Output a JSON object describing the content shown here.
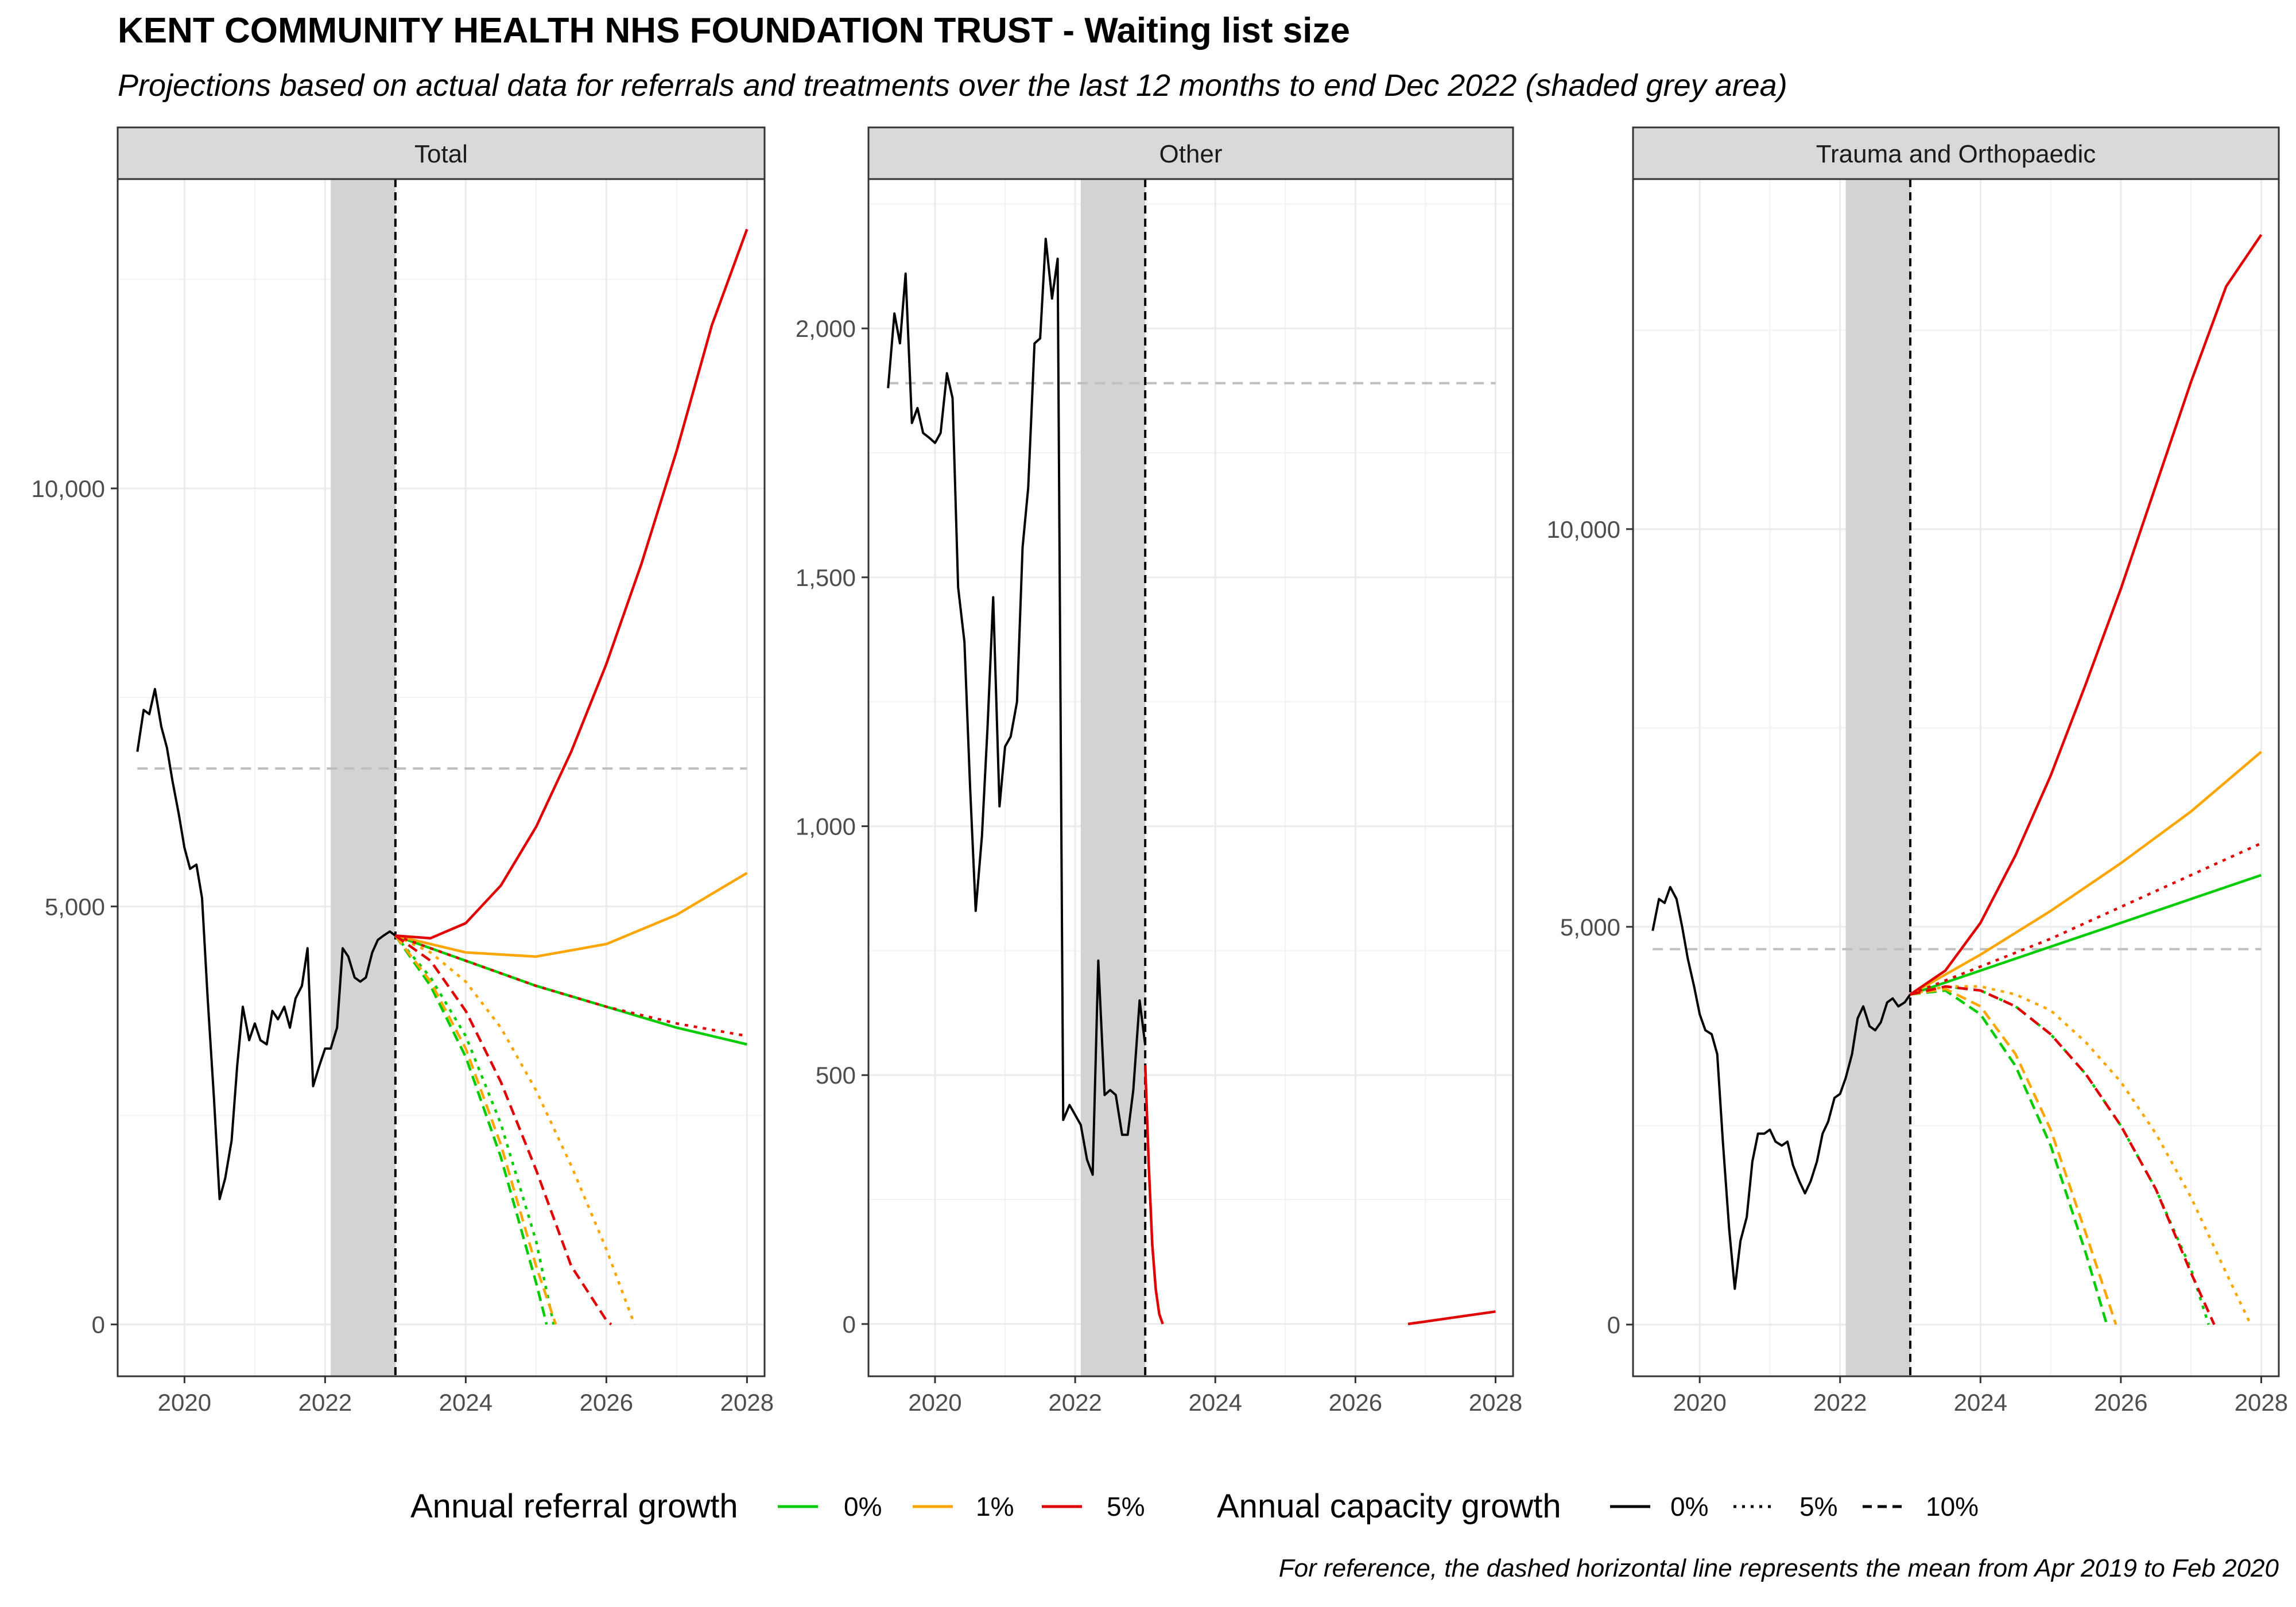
{
  "title": "KENT COMMUNITY HEALTH NHS FOUNDATION TRUST - Waiting list size",
  "subtitle": "Projections based on actual data for referrals and treatments over the last 12 months to end Dec 2022 (shaded grey area)",
  "caption": "For reference, the dashed horizontal line represents the mean from Apr 2019 to Feb 2020",
  "legend": {
    "referral_title": "Annual referral growth",
    "referral_items": [
      {
        "label": "0%",
        "color": "#00CC00"
      },
      {
        "label": "1%",
        "color": "#FFA500"
      },
      {
        "label": "5%",
        "color": "#E00000"
      }
    ],
    "capacity_title": "Annual capacity growth",
    "capacity_items": [
      {
        "label": "0%",
        "dash": "solid"
      },
      {
        "label": "5%",
        "dash": "dotted"
      },
      {
        "label": "10%",
        "dash": "dashed"
      }
    ]
  },
  "colors": {
    "r0": "#00CC00",
    "r1": "#FFA500",
    "r5": "#E00000",
    "actual": "#000000",
    "reference": "#bfbfbf",
    "shade": "#d3d3d3",
    "strip": "#d9d9d9"
  },
  "chart_data": [
    {
      "type": "line",
      "facet": "Total",
      "xlim": [
        2019.05,
        2028.25
      ],
      "ylim": [
        -620,
        13700
      ],
      "xticks": [
        2020,
        2022,
        2024,
        2026,
        2028
      ],
      "yticks": [
        0,
        5000,
        10000
      ],
      "ytick_labels": [
        "0",
        "5,000",
        "10,000"
      ],
      "shaded_period": [
        2022.08,
        2023.0
      ],
      "projection_start": 2023.0,
      "reference_mean": 6650,
      "actual": {
        "x": [
          2019.33,
          2019.42,
          2019.5,
          2019.58,
          2019.67,
          2019.75,
          2019.83,
          2019.92,
          2020.0,
          2020.08,
          2020.17,
          2020.25,
          2020.33,
          2020.42,
          2020.5,
          2020.58,
          2020.67,
          2020.75,
          2020.83,
          2020.92,
          2021.0,
          2021.08,
          2021.17,
          2021.25,
          2021.33,
          2021.42,
          2021.5,
          2021.58,
          2021.67,
          2021.75,
          2021.83,
          2021.92,
          2022.0,
          2022.08,
          2022.17,
          2022.25,
          2022.33,
          2022.42,
          2022.5,
          2022.58,
          2022.67,
          2022.75,
          2022.83,
          2022.92,
          2023.0
        ],
        "y": [
          6850,
          7350,
          7300,
          7600,
          7150,
          6900,
          6500,
          6100,
          5700,
          5450,
          5500,
          5100,
          3900,
          2700,
          1500,
          1750,
          2200,
          3100,
          3800,
          3400,
          3600,
          3400,
          3350,
          3750,
          3650,
          3800,
          3550,
          3900,
          4050,
          4500,
          2850,
          3100,
          3300,
          3300,
          3550,
          4500,
          4400,
          4150,
          4100,
          4150,
          4450,
          4600,
          4650,
          4700,
          4650
        ]
      },
      "projections": [
        {
          "referral": "0%",
          "capacity": "0%",
          "x": [
            2023.0,
            2024.0,
            2025.0,
            2026.0,
            2027.0,
            2028.0
          ],
          "y": [
            4650,
            4350,
            4050,
            3800,
            3550,
            3350
          ]
        },
        {
          "referral": "0%",
          "capacity": "5%",
          "x": [
            2023.0,
            2023.5,
            2024.0,
            2024.5,
            2025.0,
            2025.25
          ],
          "y": [
            4650,
            4150,
            3450,
            2400,
            1000,
            0
          ]
        },
        {
          "referral": "0%",
          "capacity": "10%",
          "x": [
            2023.0,
            2023.5,
            2024.0,
            2024.5,
            2025.0,
            2025.15
          ],
          "y": [
            4650,
            4050,
            3200,
            2000,
            500,
            0
          ]
        },
        {
          "referral": "1%",
          "capacity": "0%",
          "x": [
            2023.0,
            2024.0,
            2025.0,
            2026.0,
            2027.0,
            2028.0
          ],
          "y": [
            4650,
            4450,
            4400,
            4550,
            4900,
            5400
          ]
        },
        {
          "referral": "1%",
          "capacity": "5%",
          "x": [
            2023.0,
            2023.5,
            2024.0,
            2024.5,
            2025.0,
            2025.5,
            2026.0,
            2026.4
          ],
          "y": [
            4650,
            4450,
            4100,
            3550,
            2800,
            1900,
            900,
            0
          ]
        },
        {
          "referral": "1%",
          "capacity": "10%",
          "x": [
            2023.0,
            2023.5,
            2024.0,
            2024.5,
            2025.0,
            2025.28
          ],
          "y": [
            4650,
            4100,
            3300,
            2150,
            700,
            0
          ]
        },
        {
          "referral": "5%",
          "capacity": "0%",
          "x": [
            2023.0,
            2023.5,
            2024.0,
            2024.5,
            2025.0,
            2025.5,
            2026.0,
            2026.5,
            2027.0,
            2027.5,
            2028.0
          ],
          "y": [
            4650,
            4620,
            4800,
            5250,
            5950,
            6850,
            7900,
            9100,
            10450,
            11950,
            13100
          ]
        },
        {
          "referral": "5%",
          "capacity": "5%",
          "x": [
            2023.0,
            2024.0,
            2025.0,
            2026.0,
            2027.0,
            2028.0
          ],
          "y": [
            4650,
            4350,
            4050,
            3800,
            3600,
            3450
          ]
        },
        {
          "referral": "5%",
          "capacity": "10%",
          "x": [
            2023.0,
            2023.5,
            2024.0,
            2024.5,
            2025.0,
            2025.5,
            2026.0,
            2026.07
          ],
          "y": [
            4650,
            4350,
            3750,
            2900,
            1850,
            700,
            50,
            0
          ]
        }
      ]
    },
    {
      "type": "line",
      "facet": "Other",
      "xlim": [
        2019.05,
        2028.25
      ],
      "ylim": [
        -105,
        2300
      ],
      "xticks": [
        2020,
        2022,
        2024,
        2026,
        2028
      ],
      "yticks": [
        0,
        500,
        1000,
        1500,
        2000
      ],
      "ytick_labels": [
        "0",
        "500",
        "1,000",
        "1,500",
        "2,000"
      ],
      "shaded_period": [
        2022.08,
        2023.0
      ],
      "projection_start": 2023.0,
      "reference_mean": 1890,
      "actual": {
        "x": [
          2019.33,
          2019.42,
          2019.5,
          2019.58,
          2019.67,
          2019.75,
          2019.83,
          2019.92,
          2020.0,
          2020.08,
          2020.17,
          2020.25,
          2020.33,
          2020.42,
          2020.5,
          2020.58,
          2020.67,
          2020.75,
          2020.83,
          2020.92,
          2021.0,
          2021.08,
          2021.17,
          2021.25,
          2021.33,
          2021.42,
          2021.5,
          2021.58,
          2021.67,
          2021.75,
          2021.83,
          2021.92,
          2022.0,
          2022.08,
          2022.17,
          2022.25,
          2022.33,
          2022.42,
          2022.5,
          2022.58,
          2022.67,
          2022.75,
          2022.83,
          2022.92,
          2023.0
        ],
        "y": [
          1880,
          2030,
          1970,
          2110,
          1810,
          1840,
          1790,
          1780,
          1770,
          1790,
          1910,
          1860,
          1480,
          1370,
          1080,
          830,
          980,
          1200,
          1460,
          1040,
          1160,
          1180,
          1250,
          1560,
          1680,
          1970,
          1980,
          2180,
          2060,
          2140,
          410,
          440,
          420,
          400,
          330,
          300,
          730,
          460,
          470,
          460,
          380,
          380,
          470,
          650,
          560
        ]
      },
      "projections": [
        {
          "referral": "5%",
          "capacity": "0%",
          "x": [
            2023.0,
            2023.05,
            2023.1,
            2023.15,
            2023.2,
            2023.25
          ],
          "y": [
            520,
            320,
            160,
            70,
            20,
            0
          ]
        },
        {
          "referral": "5%",
          "capacity": "0%",
          "x": [
            2026.75,
            2027.0,
            2027.5,
            2028.0
          ],
          "y": [
            0,
            5,
            15,
            25
          ]
        }
      ]
    },
    {
      "type": "line",
      "facet": "Trauma and Orthopaedic",
      "xlim": [
        2019.05,
        2028.25
      ],
      "ylim": [
        -650,
        14400
      ],
      "xticks": [
        2020,
        2022,
        2024,
        2026,
        2028
      ],
      "yticks": [
        0,
        5000,
        10000
      ],
      "ytick_labels": [
        "0",
        "5,000",
        "10,000"
      ],
      "shaded_period": [
        2022.08,
        2023.0
      ],
      "projection_start": 2023.0,
      "reference_mean": 4720,
      "actual": {
        "x": [
          2019.33,
          2019.42,
          2019.5,
          2019.58,
          2019.67,
          2019.75,
          2019.83,
          2019.92,
          2020.0,
          2020.08,
          2020.17,
          2020.25,
          2020.33,
          2020.42,
          2020.5,
          2020.58,
          2020.67,
          2020.75,
          2020.83,
          2020.92,
          2021.0,
          2021.08,
          2021.17,
          2021.25,
          2021.33,
          2021.42,
          2021.5,
          2021.58,
          2021.67,
          2021.75,
          2021.83,
          2021.92,
          2022.0,
          2022.08,
          2022.17,
          2022.25,
          2022.33,
          2022.42,
          2022.5,
          2022.58,
          2022.67,
          2022.75,
          2022.83,
          2022.92,
          2023.0
        ],
        "y": [
          4950,
          5350,
          5300,
          5500,
          5350,
          5000,
          4600,
          4250,
          3900,
          3700,
          3650,
          3400,
          2300,
          1200,
          450,
          1050,
          1350,
          2050,
          2400,
          2400,
          2450,
          2300,
          2250,
          2300,
          2000,
          1800,
          1650,
          1800,
          2050,
          2400,
          2550,
          2850,
          2900,
          3100,
          3400,
          3850,
          4000,
          3750,
          3700,
          3800,
          4050,
          4100,
          4000,
          4050,
          4150
        ]
      },
      "projections": [
        {
          "referral": "0%",
          "capacity": "0%",
          "x": [
            2023.0,
            2024.0,
            2025.0,
            2026.0,
            2027.0,
            2028.0
          ],
          "y": [
            4150,
            4450,
            4750,
            5050,
            5350,
            5650
          ]
        },
        {
          "referral": "0%",
          "capacity": "5%",
          "x": [
            2023.0,
            2023.5,
            2024.0,
            2024.5,
            2025.0,
            2025.5,
            2026.0,
            2026.5,
            2027.0,
            2027.25
          ],
          "y": [
            4150,
            4250,
            4200,
            4000,
            3650,
            3150,
            2500,
            1700,
            700,
            0
          ]
        },
        {
          "referral": "0%",
          "capacity": "10%",
          "x": [
            2023.0,
            2023.5,
            2024.0,
            2024.5,
            2025.0,
            2025.5,
            2025.8
          ],
          "y": [
            4150,
            4200,
            3900,
            3250,
            2250,
            900,
            0
          ]
        },
        {
          "referral": "1%",
          "capacity": "0%",
          "x": [
            2023.0,
            2024.0,
            2025.0,
            2026.0,
            2027.0,
            2028.0
          ],
          "y": [
            4150,
            4650,
            5200,
            5800,
            6450,
            7200
          ]
        },
        {
          "referral": "1%",
          "capacity": "5%",
          "x": [
            2023.0,
            2023.5,
            2024.0,
            2024.5,
            2025.0,
            2025.5,
            2026.0,
            2026.5,
            2027.0,
            2027.5,
            2027.85
          ],
          "y": [
            4150,
            4250,
            4250,
            4150,
            3950,
            3550,
            3050,
            2400,
            1600,
            650,
            0
          ]
        },
        {
          "referral": "1%",
          "capacity": "10%",
          "x": [
            2023.0,
            2023.5,
            2024.0,
            2024.5,
            2025.0,
            2025.5,
            2025.93
          ],
          "y": [
            4150,
            4220,
            4000,
            3400,
            2450,
            1150,
            0
          ]
        },
        {
          "referral": "5%",
          "capacity": "0%",
          "x": [
            2023.0,
            2023.5,
            2024.0,
            2024.5,
            2025.0,
            2025.5,
            2026.0,
            2026.5,
            2027.0,
            2027.5,
            2028.0
          ],
          "y": [
            4150,
            4450,
            5050,
            5900,
            6900,
            8050,
            9250,
            10550,
            11850,
            13050,
            13700
          ]
        },
        {
          "referral": "5%",
          "capacity": "5%",
          "x": [
            2023.0,
            2024.0,
            2025.0,
            2026.0,
            2027.0,
            2028.0
          ],
          "y": [
            4150,
            4500,
            4850,
            5250,
            5650,
            6050
          ]
        },
        {
          "referral": "5%",
          "capacity": "10%",
          "x": [
            2023.0,
            2023.5,
            2024.0,
            2024.5,
            2025.0,
            2025.5,
            2026.0,
            2026.5,
            2027.0,
            2027.33
          ],
          "y": [
            4150,
            4250,
            4200,
            4000,
            3650,
            3150,
            2500,
            1700,
            650,
            0
          ]
        }
      ]
    }
  ]
}
